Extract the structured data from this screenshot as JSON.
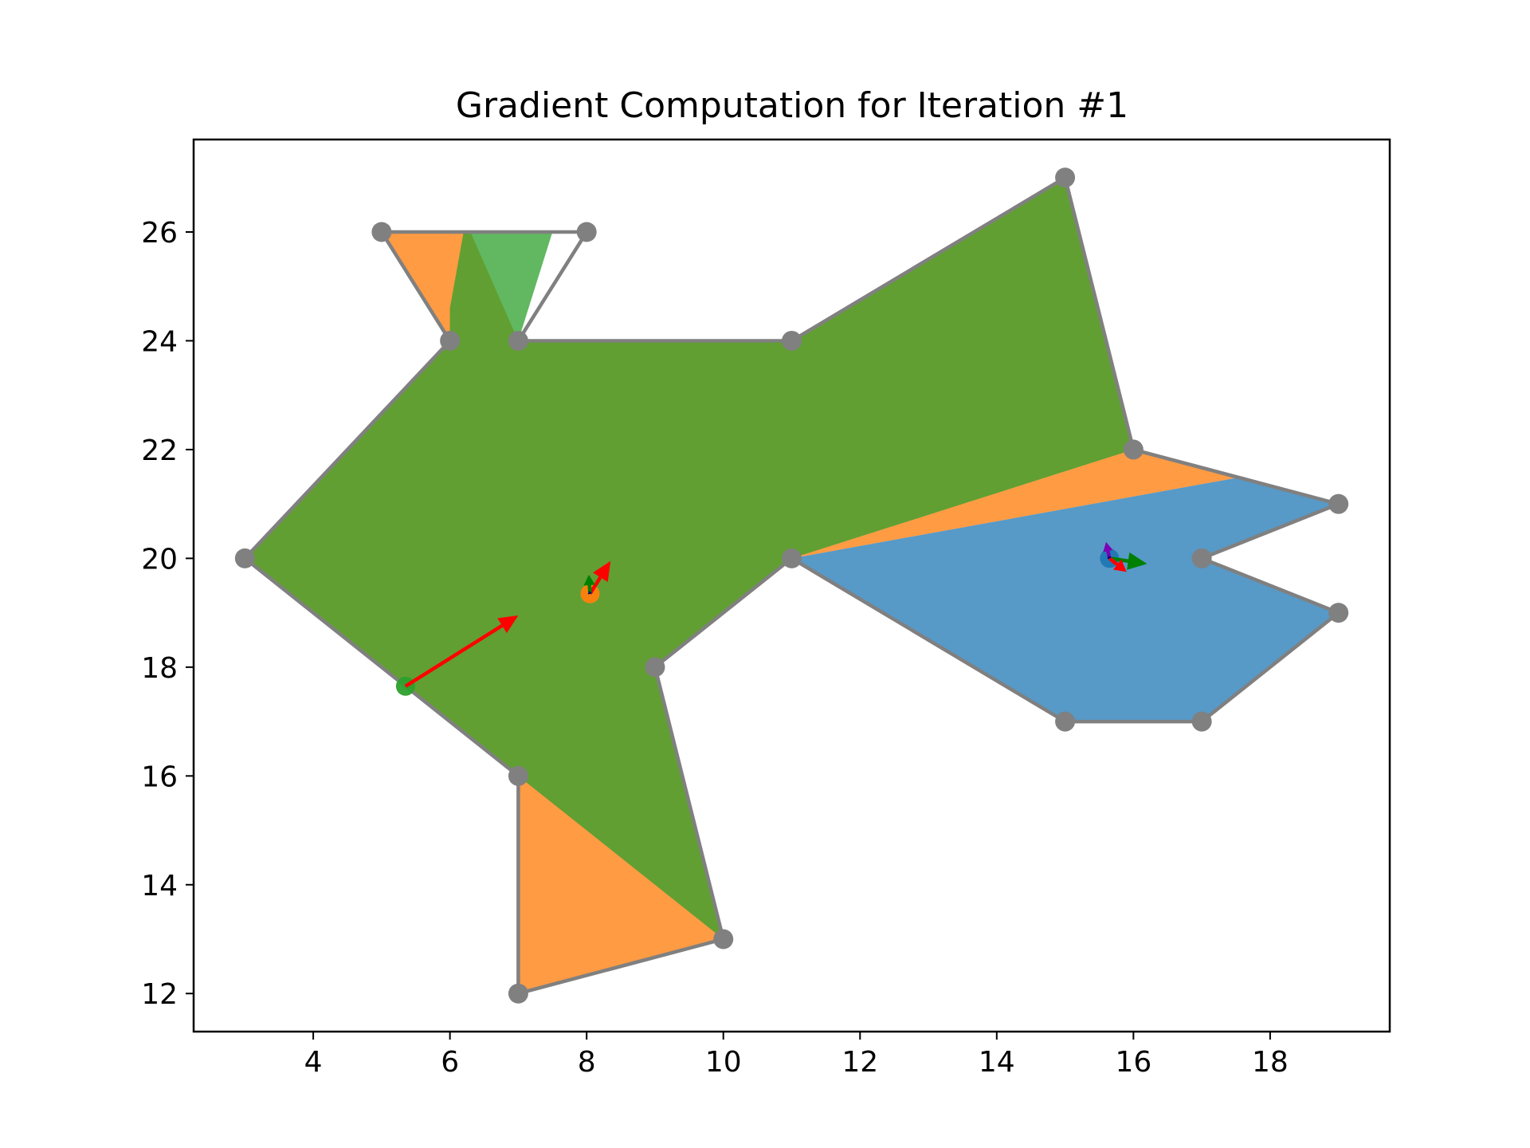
{
  "chart_data": {
    "type": "scatter",
    "title": "Gradient Computation for Iteration #1",
    "xlabel": "",
    "ylabel": "",
    "xlim": [
      2.25,
      19.75
    ],
    "ylim": [
      11.3,
      27.7
    ],
    "xticks": [
      4,
      6,
      8,
      10,
      12,
      14,
      16,
      18
    ],
    "yticks": [
      12,
      14,
      16,
      18,
      20,
      22,
      24,
      26
    ],
    "grid": false,
    "colors": {
      "blue": "#1f77b4",
      "orange": "#ff7f0e",
      "green": "#2ca02c",
      "outline": "#808080",
      "arrow": "#ff0000",
      "arrow_green": "#008000",
      "arrow_purple": "#7b00b4",
      "arrow_dark": "#00008b"
    },
    "polygon": [
      [
        5,
        26
      ],
      [
        6,
        24
      ],
      [
        3,
        20
      ],
      [
        7,
        16
      ],
      [
        7,
        12
      ],
      [
        10,
        13
      ],
      [
        9,
        18
      ],
      [
        11,
        20
      ],
      [
        15,
        17
      ],
      [
        17,
        17
      ],
      [
        19,
        19
      ],
      [
        17,
        20
      ],
      [
        19,
        21
      ],
      [
        16,
        22
      ],
      [
        15,
        27
      ],
      [
        11,
        24
      ],
      [
        7,
        24
      ],
      [
        8,
        26
      ]
    ],
    "regions": [
      {
        "color": "orange",
        "opacity": 0.78,
        "points": [
          [
            5,
            26
          ],
          [
            6,
            24
          ],
          [
            3,
            20
          ],
          [
            7,
            16
          ],
          [
            7,
            12
          ],
          [
            10,
            13
          ],
          [
            9,
            18
          ],
          [
            11,
            20
          ],
          [
            16,
            22
          ],
          [
            15,
            27
          ],
          [
            11,
            24
          ],
          [
            7,
            24
          ],
          [
            6.3,
            26
          ]
        ]
      },
      {
        "color": "orange",
        "opacity": 0.78,
        "points": [
          [
            11,
            20
          ],
          [
            16,
            22
          ],
          [
            17.6,
            21.5
          ]
        ]
      },
      {
        "color": "blue",
        "opacity": 0.75,
        "points": [
          [
            11,
            20
          ],
          [
            17.6,
            21.5
          ],
          [
            19,
            21
          ],
          [
            17,
            20
          ],
          [
            19,
            19
          ],
          [
            17,
            17
          ],
          [
            15,
            17
          ]
        ]
      },
      {
        "color": "green",
        "opacity": 0.75,
        "points": [
          [
            6.2,
            26
          ],
          [
            7.5,
            26
          ],
          [
            7,
            24
          ],
          [
            11,
            24
          ],
          [
            15,
            27
          ],
          [
            16,
            22
          ],
          [
            11,
            20
          ],
          [
            9,
            18
          ],
          [
            10,
            13
          ],
          [
            3,
            20
          ],
          [
            6,
            24
          ],
          [
            6,
            24.6
          ]
        ]
      }
    ],
    "vertex_markers": [
      [
        5,
        26
      ],
      [
        8,
        26
      ],
      [
        6,
        24
      ],
      [
        7,
        24
      ],
      [
        11,
        24
      ],
      [
        15,
        27
      ],
      [
        16,
        22
      ],
      [
        19,
        21
      ],
      [
        17,
        20
      ],
      [
        19,
        19
      ],
      [
        17,
        17
      ],
      [
        15,
        17
      ],
      [
        11,
        20
      ],
      [
        9,
        18
      ],
      [
        10,
        13
      ],
      [
        7,
        12
      ],
      [
        7,
        16
      ],
      [
        3,
        20
      ]
    ],
    "center_points": [
      {
        "color": "orange",
        "x": 8.05,
        "y": 19.35
      },
      {
        "color": "green",
        "x": 5.35,
        "y": 17.65
      },
      {
        "color": "blue",
        "x": 15.65,
        "y": 20.0
      }
    ],
    "arrows": [
      {
        "color": "arrow",
        "x": 5.35,
        "y": 17.65,
        "dx": 1.65,
        "dy": 1.3
      },
      {
        "color": "arrow",
        "x": 8.05,
        "y": 19.35,
        "dx": 0.3,
        "dy": 0.6
      },
      {
        "color": "arrow_green",
        "x": 8.05,
        "y": 19.35,
        "dx": -0.02,
        "dy": 0.35
      },
      {
        "color": "arrow_dark",
        "x": 8.05,
        "y": 19.35,
        "dx": -0.02,
        "dy": 0.05
      },
      {
        "color": "arrow_green",
        "x": 15.65,
        "y": 20.0,
        "dx": 0.55,
        "dy": -0.1
      },
      {
        "color": "arrow",
        "x": 15.65,
        "y": 20.0,
        "dx": 0.25,
        "dy": -0.25
      },
      {
        "color": "arrow_purple",
        "x": 15.65,
        "y": 20.0,
        "dx": -0.05,
        "dy": 0.3
      },
      {
        "color": "arrow_dark",
        "x": 15.65,
        "y": 20.0,
        "dx": -0.02,
        "dy": 0.05
      }
    ]
  }
}
